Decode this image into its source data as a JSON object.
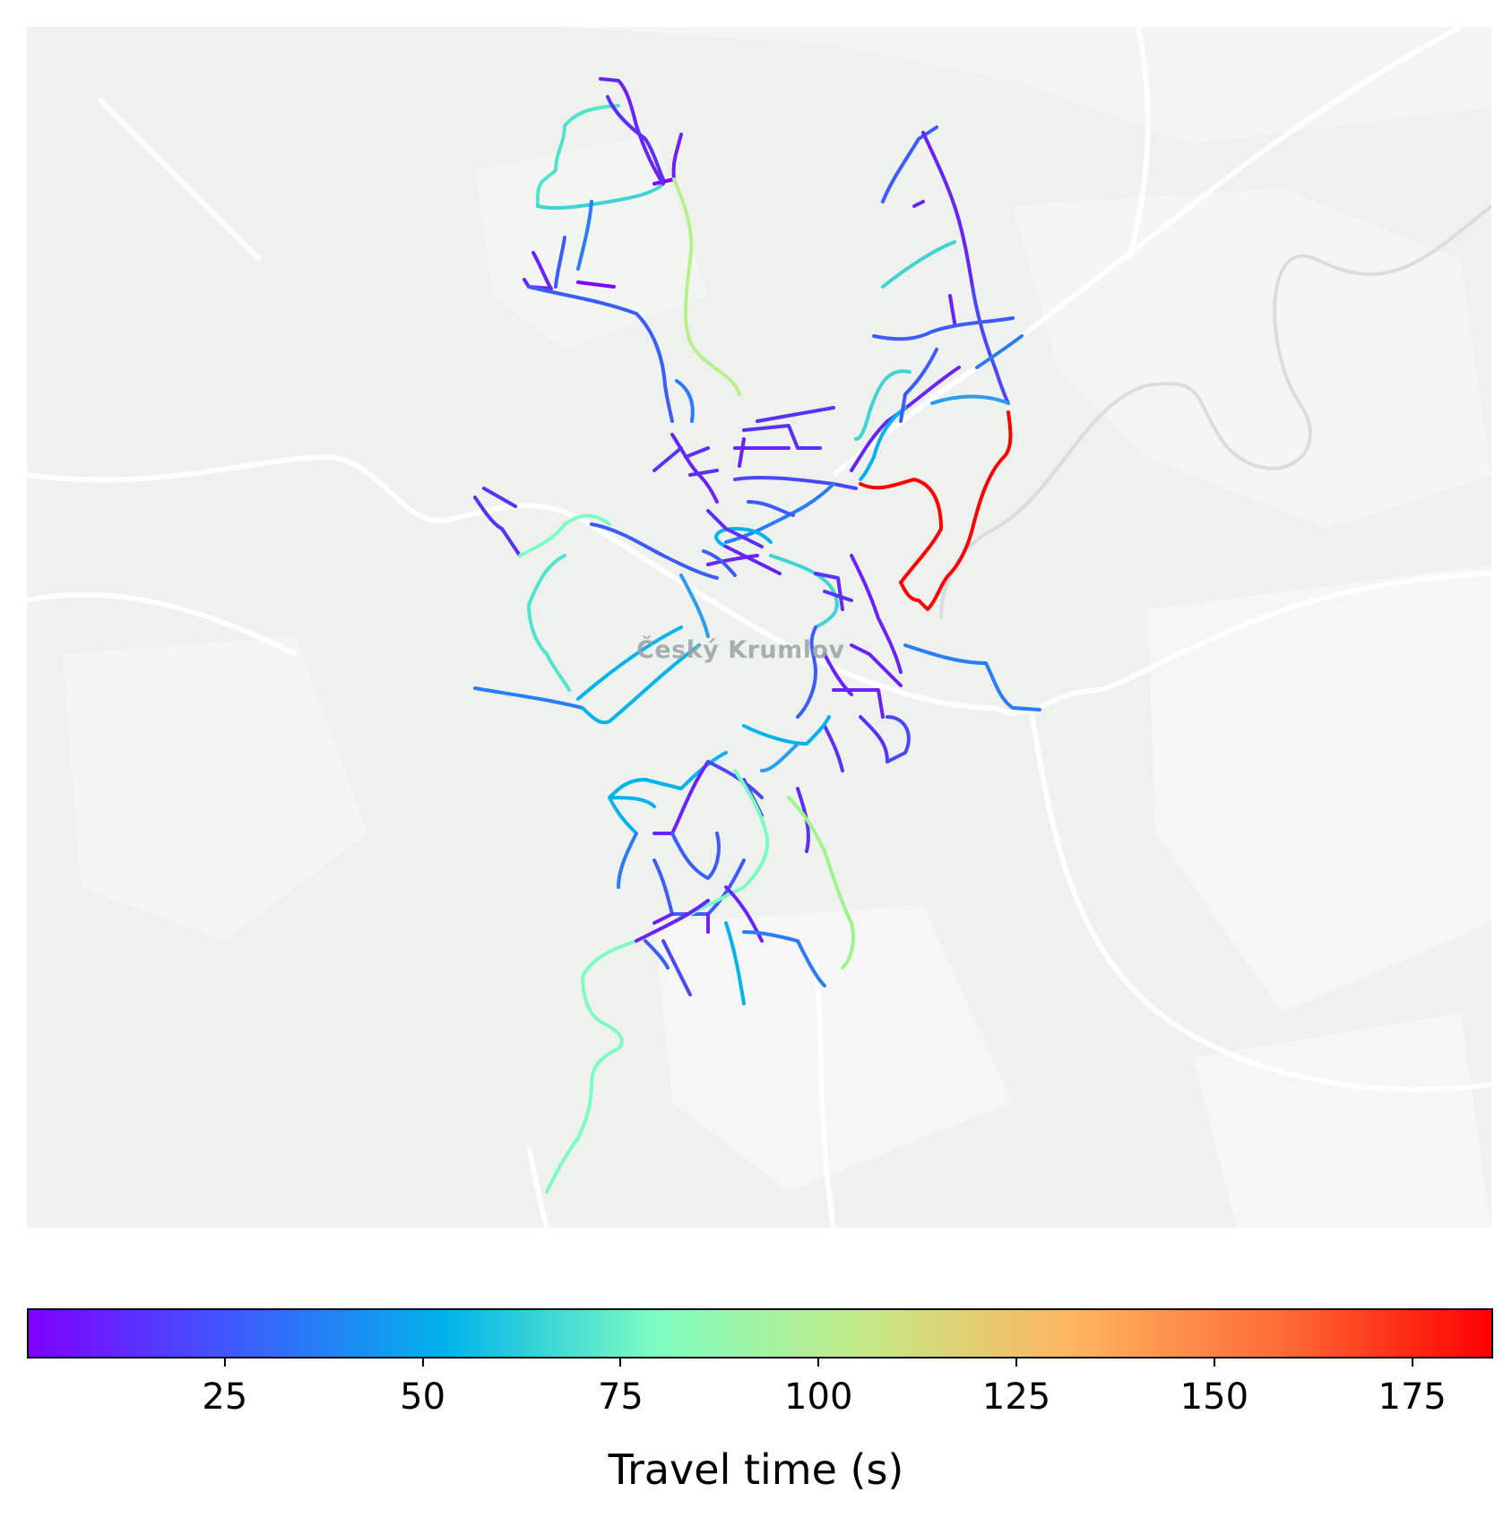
{
  "map": {
    "place_label": "Český Krumlov",
    "basemap": "light-gray",
    "colormap": "rainbow"
  },
  "colorbar": {
    "label": "Travel time (s)",
    "min": 0,
    "max": 185,
    "ticks": [
      "25",
      "50",
      "75",
      "100",
      "125",
      "150",
      "175"
    ],
    "tick_values": [
      25,
      50,
      75,
      100,
      125,
      150,
      175
    ],
    "colors": [
      "#7f00ff",
      "#3c5cfd",
      "#00b4eb",
      "#7dfdc1",
      "#c4ea86",
      "#ffb460",
      "#ff6b35",
      "#ff0000"
    ]
  }
}
